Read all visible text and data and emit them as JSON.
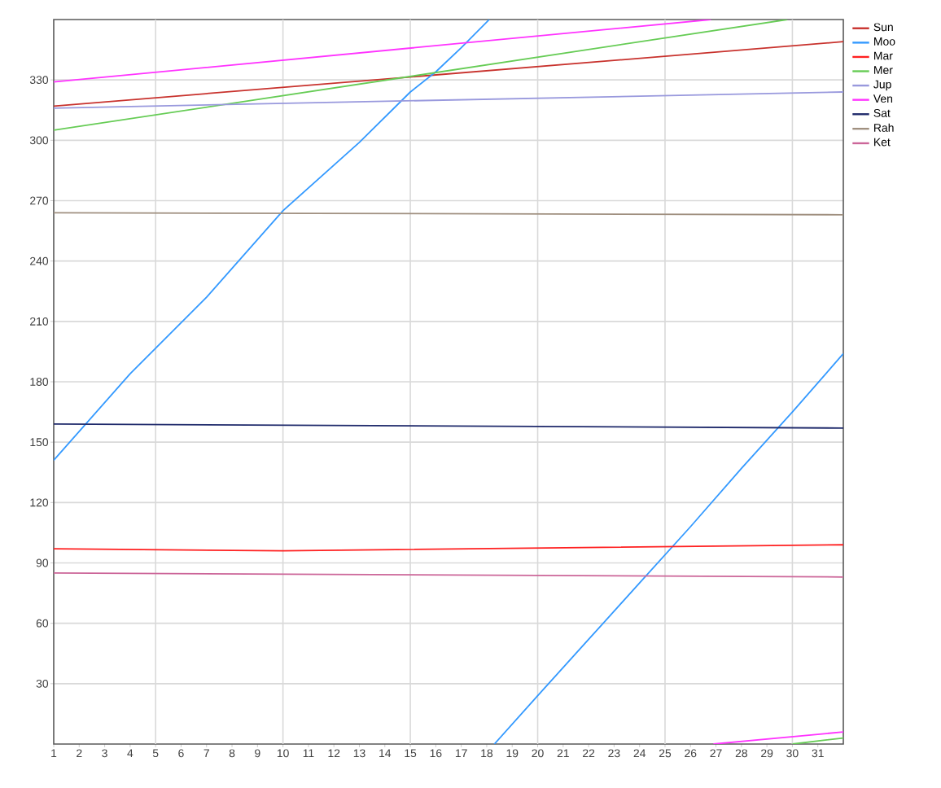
{
  "chart_data": {
    "type": "line",
    "xlim": [
      1,
      32
    ],
    "xticks": [
      1,
      2,
      3,
      4,
      5,
      6,
      7,
      8,
      9,
      10,
      11,
      12,
      13,
      14,
      15,
      16,
      17,
      18,
      19,
      20,
      21,
      22,
      23,
      24,
      25,
      26,
      27,
      28,
      29,
      30,
      31
    ],
    "ylim": [
      0,
      360
    ],
    "yticks": [
      30,
      60,
      90,
      120,
      150,
      180,
      210,
      240,
      270,
      300,
      330
    ],
    "grid": true,
    "legend": "top right",
    "marker": "none",
    "line_style": "solid",
    "series": [
      {
        "name": "Sun",
        "color": "#c8322d",
        "x": [
          1,
          32
        ],
        "values": [
          317,
          349
        ]
      },
      {
        "name": "Moo",
        "color": "#3399ff",
        "x": [
          1,
          4,
          7,
          10,
          13,
          15,
          16,
          17,
          18.1,
          18.2,
          18.3,
          20,
          22,
          24,
          26,
          28,
          30,
          32
        ],
        "values": [
          141,
          184,
          222,
          265,
          299,
          324,
          334,
          346,
          360,
          null,
          0,
          24,
          52,
          80,
          108,
          137,
          165,
          194
        ]
      },
      {
        "name": "Mar",
        "color": "#ff2020",
        "x": [
          1,
          10,
          32
        ],
        "values": [
          97,
          96,
          99
        ]
      },
      {
        "name": "Mer",
        "color": "#66cc55",
        "x": [
          1,
          29.8,
          29.9,
          30,
          32
        ],
        "values": [
          305,
          360,
          null,
          0,
          3
        ]
      },
      {
        "name": "Jup",
        "color": "#9999dd",
        "x": [
          1,
          32
        ],
        "values": [
          316,
          324
        ]
      },
      {
        "name": "Ven",
        "color": "#ff33ff",
        "x": [
          1,
          26.8,
          26.85,
          26.9,
          32
        ],
        "values": [
          329,
          360,
          null,
          0,
          6
        ]
      },
      {
        "name": "Sat",
        "color": "#1f2a6b",
        "x": [
          1,
          32
        ],
        "values": [
          159,
          157
        ]
      },
      {
        "name": "Rah",
        "color": "#a09080",
        "x": [
          1,
          32
        ],
        "values": [
          264,
          263
        ]
      },
      {
        "name": "Ket",
        "color": "#cc6699",
        "x": [
          1,
          32
        ],
        "values": [
          85,
          83
        ]
      }
    ]
  }
}
